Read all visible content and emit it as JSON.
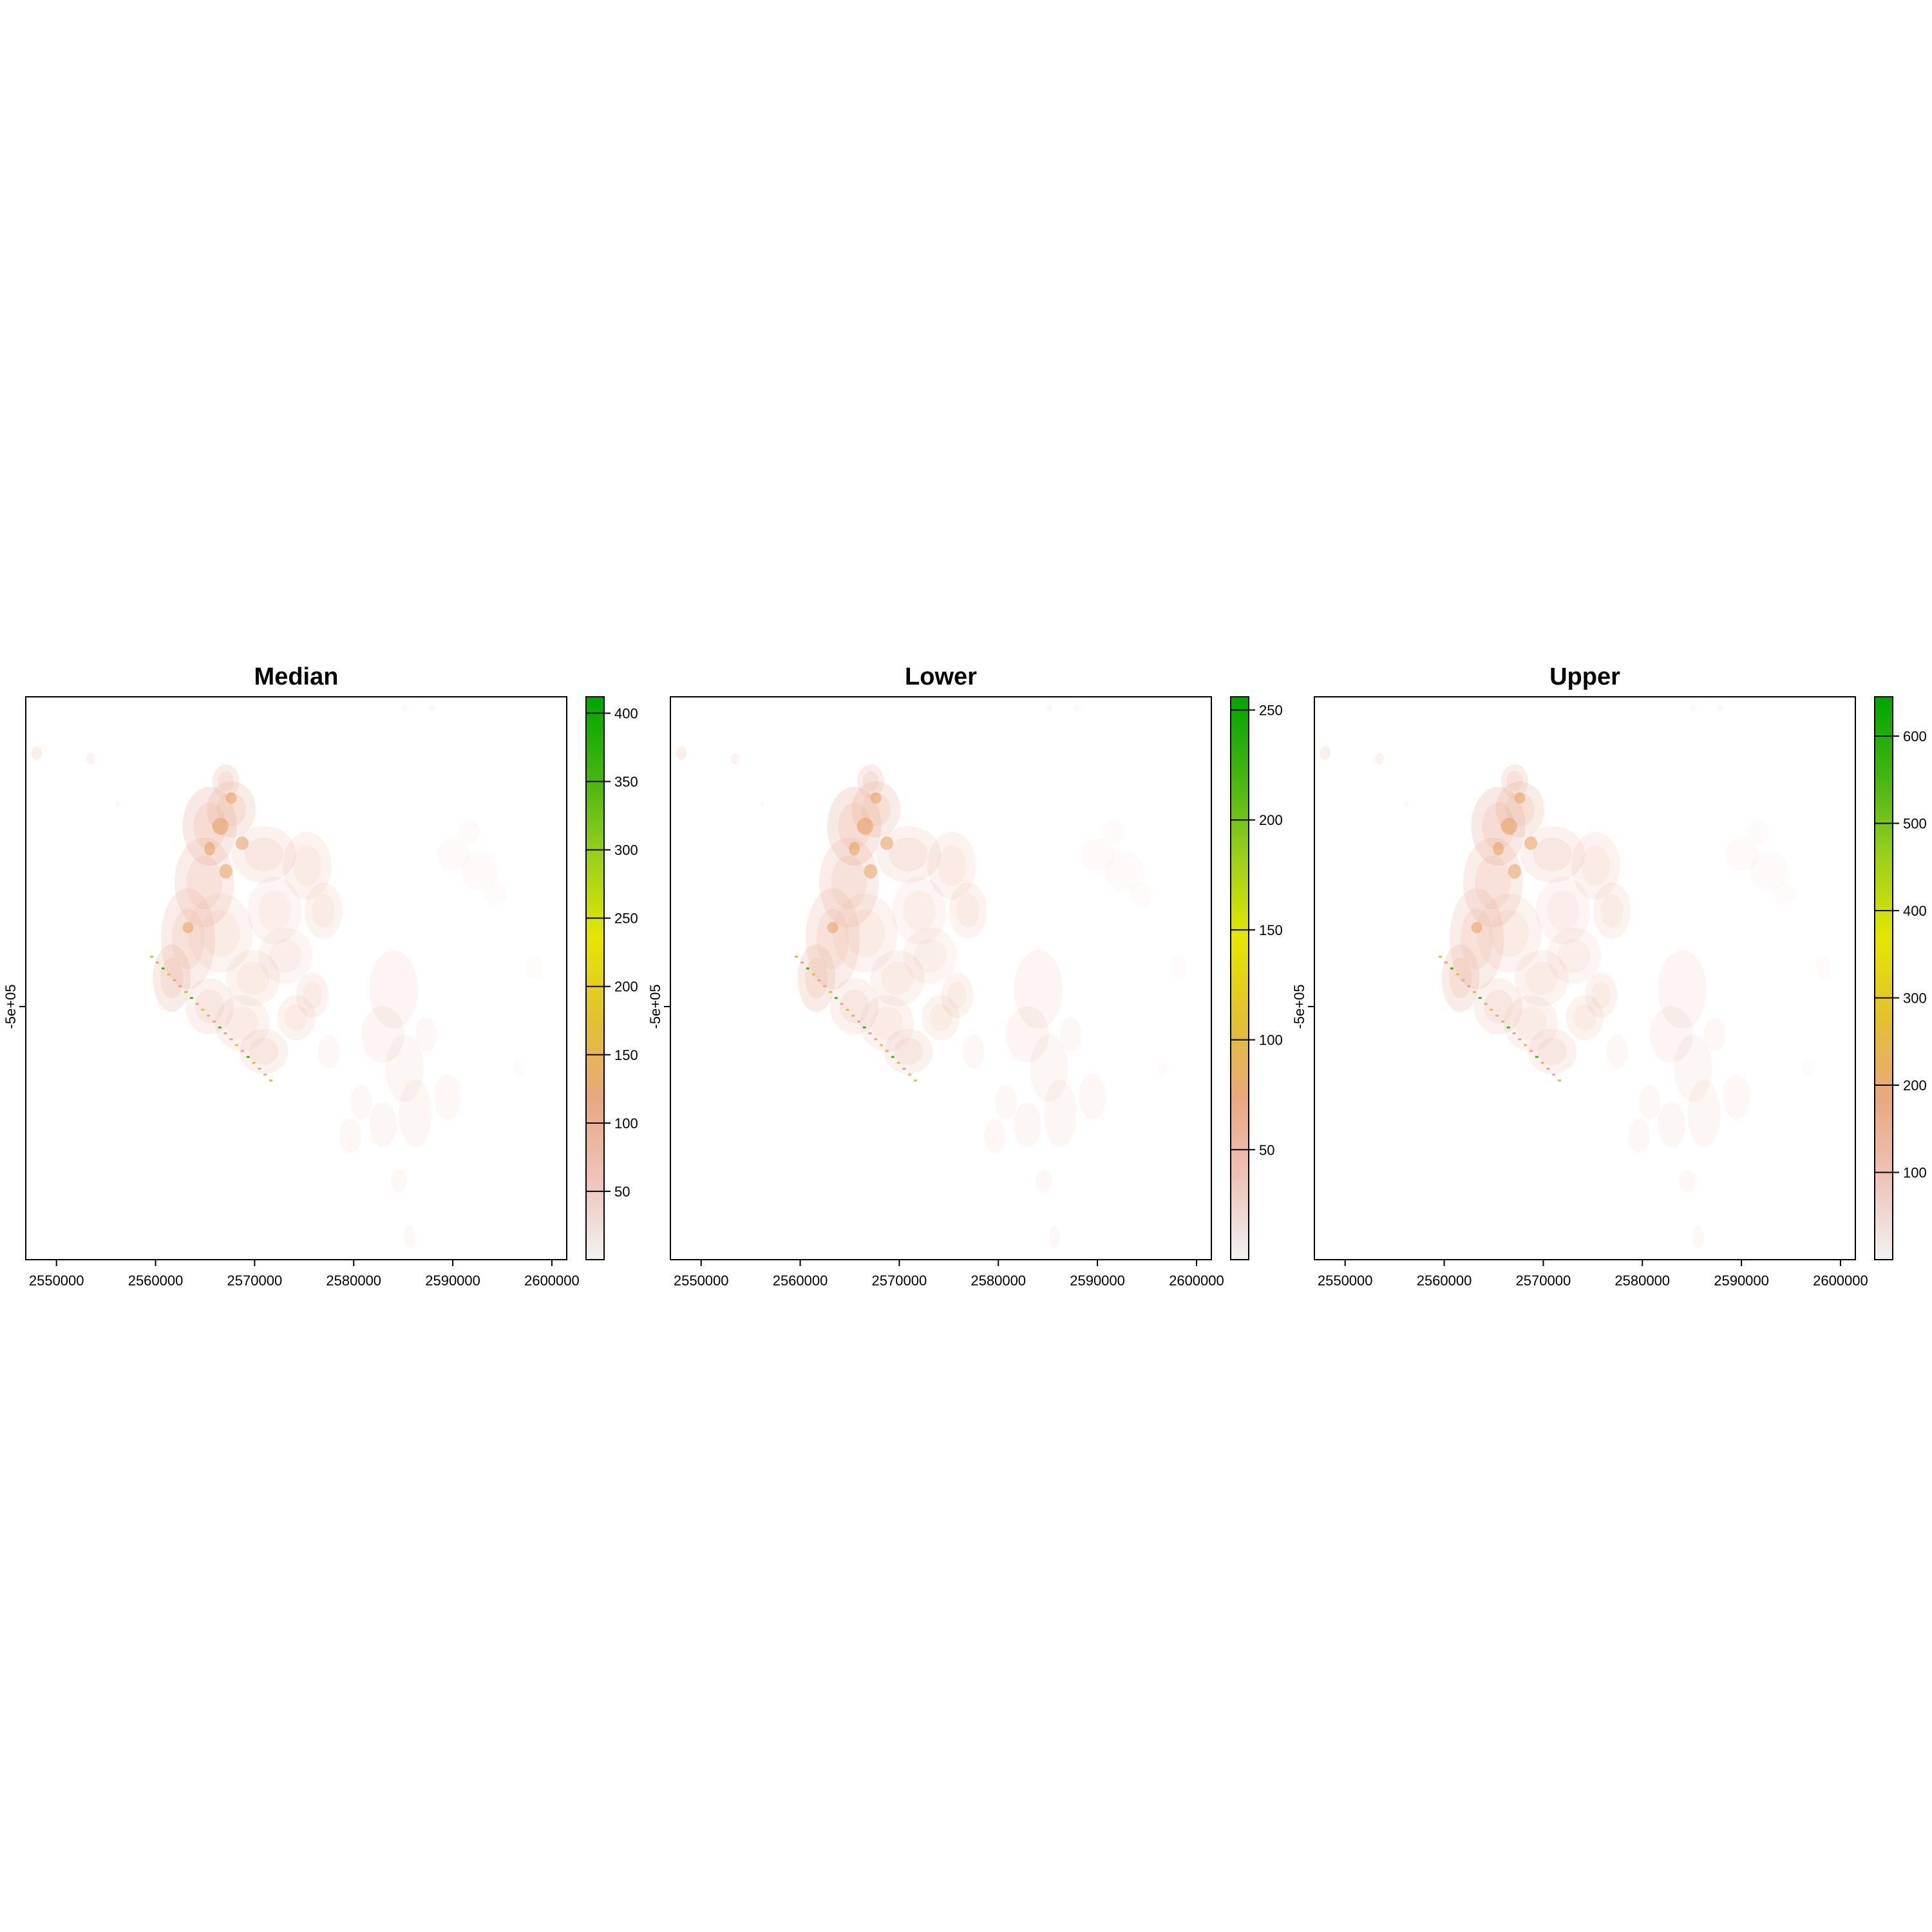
{
  "chart_data": [
    {
      "type": "heatmap",
      "title": "Median",
      "x_ticks": [
        2550000,
        2560000,
        2570000,
        2580000,
        2590000,
        2600000
      ],
      "x_tick_labels": [
        "2550000",
        "2560000",
        "2570000",
        "2580000",
        "2590000",
        "2600000"
      ],
      "xlim": [
        2546900,
        2601500
      ],
      "y_ticks": [
        -500000
      ],
      "y_tick_labels": [
        "-5e+05"
      ],
      "legend": {
        "position": "right",
        "range": [
          0,
          412
        ],
        "ticks": [
          50,
          100,
          150,
          200,
          250,
          300,
          350,
          400
        ],
        "tick_labels": [
          "50",
          "100",
          "150",
          "200",
          "250",
          "300",
          "350",
          "400"
        ],
        "colors": [
          "#f2f2f2",
          "#eec4b8",
          "#e9a87f",
          "#e3c12e",
          "#e6e600",
          "#9cd01c",
          "#46b511",
          "#00a600"
        ]
      }
    },
    {
      "type": "heatmap",
      "title": "Lower",
      "x_ticks": [
        2550000,
        2560000,
        2570000,
        2580000,
        2590000,
        2600000
      ],
      "x_tick_labels": [
        "2550000",
        "2560000",
        "2570000",
        "2580000",
        "2590000",
        "2600000"
      ],
      "xlim": [
        2546900,
        2601500
      ],
      "y_ticks": [
        -500000
      ],
      "y_tick_labels": [
        "-5e+05"
      ],
      "legend": {
        "position": "right",
        "range": [
          0,
          256
        ],
        "ticks": [
          50,
          100,
          150,
          200,
          250
        ],
        "tick_labels": [
          "50",
          "100",
          "150",
          "200",
          "250"
        ],
        "colors": [
          "#f2f2f2",
          "#eec4b8",
          "#e9a87f",
          "#e3c12e",
          "#e6e600",
          "#9cd01c",
          "#46b511",
          "#00a600"
        ]
      }
    },
    {
      "type": "heatmap",
      "title": "Upper",
      "x_ticks": [
        2550000,
        2560000,
        2570000,
        2580000,
        2590000,
        2600000
      ],
      "x_tick_labels": [
        "2550000",
        "2560000",
        "2570000",
        "2580000",
        "2590000",
        "2600000"
      ],
      "xlim": [
        2546900,
        2601500
      ],
      "y_ticks": [
        -500000
      ],
      "y_tick_labels": [
        "-5e+05"
      ],
      "legend": {
        "position": "right",
        "range": [
          0,
          645
        ],
        "ticks": [
          100,
          200,
          300,
          400,
          500,
          600
        ],
        "tick_labels": [
          "100",
          "200",
          "300",
          "400",
          "500",
          "600"
        ],
        "colors": [
          "#f2f2f2",
          "#eec4b8",
          "#e9a87f",
          "#e3c12e",
          "#e6e600",
          "#9cd01c",
          "#46b511",
          "#00a600"
        ]
      }
    }
  ]
}
